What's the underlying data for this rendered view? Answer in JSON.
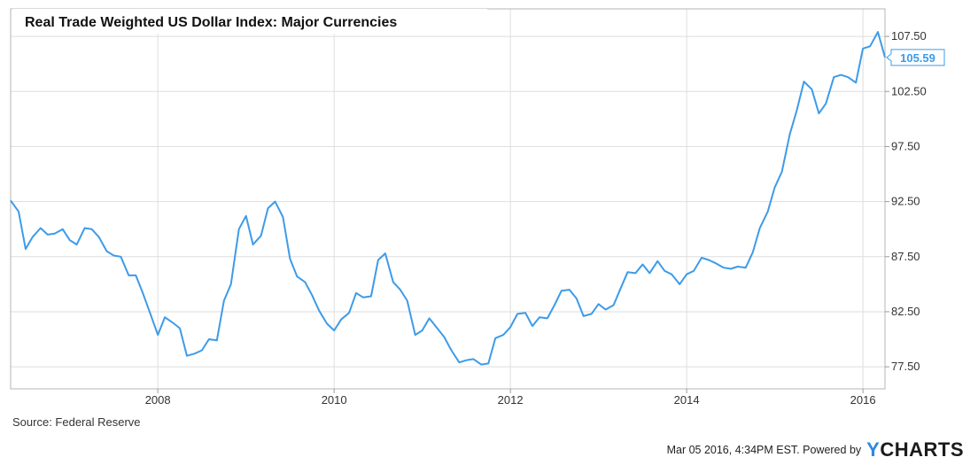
{
  "chart_data": {
    "type": "line",
    "title": "Real Trade Weighted US Dollar Index: Major Currencies",
    "series": [
      {
        "values": [
          [
            2006.33,
            92.6
          ],
          [
            2006.42,
            91.6
          ],
          [
            2006.5,
            88.2
          ],
          [
            2006.58,
            89.3
          ],
          [
            2006.67,
            90.1
          ],
          [
            2006.75,
            89.5
          ],
          [
            2006.83,
            89.6
          ],
          [
            2006.92,
            90.0
          ],
          [
            2007.0,
            89.0
          ],
          [
            2007.08,
            88.6
          ],
          [
            2007.17,
            90.1
          ],
          [
            2007.25,
            90.0
          ],
          [
            2007.33,
            89.3
          ],
          [
            2007.42,
            88.0
          ],
          [
            2007.5,
            87.6
          ],
          [
            2007.58,
            87.5
          ],
          [
            2007.67,
            85.8
          ],
          [
            2007.75,
            85.8
          ],
          [
            2007.83,
            84.2
          ],
          [
            2007.92,
            82.2
          ],
          [
            2008.0,
            80.4
          ],
          [
            2008.08,
            82.0
          ],
          [
            2008.17,
            81.5
          ],
          [
            2008.25,
            81.0
          ],
          [
            2008.33,
            78.5
          ],
          [
            2008.42,
            78.7
          ],
          [
            2008.5,
            79.0
          ],
          [
            2008.58,
            80.0
          ],
          [
            2008.67,
            79.9
          ],
          [
            2008.75,
            83.5
          ],
          [
            2008.83,
            85.0
          ],
          [
            2008.92,
            90.0
          ],
          [
            2009.0,
            91.2
          ],
          [
            2009.08,
            88.6
          ],
          [
            2009.17,
            89.4
          ],
          [
            2009.25,
            91.9
          ],
          [
            2009.33,
            92.5
          ],
          [
            2009.42,
            91.1
          ],
          [
            2009.5,
            87.3
          ],
          [
            2009.58,
            85.7
          ],
          [
            2009.67,
            85.2
          ],
          [
            2009.75,
            84.0
          ],
          [
            2009.83,
            82.6
          ],
          [
            2009.92,
            81.4
          ],
          [
            2010.0,
            80.8
          ],
          [
            2010.08,
            81.8
          ],
          [
            2010.17,
            82.4
          ],
          [
            2010.25,
            84.2
          ],
          [
            2010.33,
            83.8
          ],
          [
            2010.42,
            83.9
          ],
          [
            2010.5,
            87.2
          ],
          [
            2010.58,
            87.8
          ],
          [
            2010.67,
            85.2
          ],
          [
            2010.75,
            84.5
          ],
          [
            2010.83,
            83.5
          ],
          [
            2010.92,
            80.4
          ],
          [
            2011.0,
            80.8
          ],
          [
            2011.08,
            81.9
          ],
          [
            2011.17,
            81.0
          ],
          [
            2011.25,
            80.2
          ],
          [
            2011.33,
            79.0
          ],
          [
            2011.42,
            77.9
          ],
          [
            2011.5,
            78.1
          ],
          [
            2011.58,
            78.2
          ],
          [
            2011.67,
            77.7
          ],
          [
            2011.75,
            77.8
          ],
          [
            2011.83,
            80.1
          ],
          [
            2011.92,
            80.4
          ],
          [
            2012.0,
            81.1
          ],
          [
            2012.08,
            82.3
          ],
          [
            2012.17,
            82.4
          ],
          [
            2012.25,
            81.2
          ],
          [
            2012.33,
            82.0
          ],
          [
            2012.42,
            81.9
          ],
          [
            2012.5,
            83.1
          ],
          [
            2012.58,
            84.4
          ],
          [
            2012.67,
            84.5
          ],
          [
            2012.75,
            83.7
          ],
          [
            2012.83,
            82.1
          ],
          [
            2012.92,
            82.3
          ],
          [
            2013.0,
            83.2
          ],
          [
            2013.08,
            82.7
          ],
          [
            2013.17,
            83.1
          ],
          [
            2013.25,
            84.6
          ],
          [
            2013.33,
            86.1
          ],
          [
            2013.42,
            86.0
          ],
          [
            2013.5,
            86.8
          ],
          [
            2013.58,
            86.0
          ],
          [
            2013.67,
            87.1
          ],
          [
            2013.75,
            86.2
          ],
          [
            2013.83,
            85.9
          ],
          [
            2013.92,
            85.0
          ],
          [
            2014.0,
            85.9
          ],
          [
            2014.08,
            86.2
          ],
          [
            2014.17,
            87.4
          ],
          [
            2014.25,
            87.2
          ],
          [
            2014.33,
            86.9
          ],
          [
            2014.42,
            86.5
          ],
          [
            2014.5,
            86.4
          ],
          [
            2014.58,
            86.6
          ],
          [
            2014.67,
            86.5
          ],
          [
            2014.75,
            87.9
          ],
          [
            2014.83,
            90.1
          ],
          [
            2014.92,
            91.6
          ],
          [
            2015.0,
            93.8
          ],
          [
            2015.08,
            95.2
          ],
          [
            2015.17,
            98.6
          ],
          [
            2015.25,
            100.8
          ],
          [
            2015.33,
            103.4
          ],
          [
            2015.42,
            102.7
          ],
          [
            2015.5,
            100.5
          ],
          [
            2015.58,
            101.4
          ],
          [
            2015.67,
            103.8
          ],
          [
            2015.75,
            104.0
          ],
          [
            2015.83,
            103.8
          ],
          [
            2015.92,
            103.3
          ],
          [
            2016.0,
            106.4
          ],
          [
            2016.08,
            106.6
          ],
          [
            2016.17,
            107.9
          ],
          [
            2016.25,
            105.59
          ]
        ],
        "color": "#3d9be9"
      }
    ],
    "last_value_label": "105.59",
    "x_ticks": [
      "2008",
      "2010",
      "2012",
      "2014",
      "2016"
    ],
    "y_ticks": [
      "77.50",
      "82.50",
      "87.50",
      "92.50",
      "97.50",
      "102.50",
      "107.50"
    ],
    "xlim": [
      2006.33,
      2016.25
    ],
    "ylim": [
      75.5,
      110.0
    ],
    "grid": true,
    "source": "Source: Federal Reserve",
    "footer_text": "Mar 05 2016, 4:34PM EST.  Powered by",
    "brand_y": "Y",
    "brand_rest": "CHARTS"
  }
}
